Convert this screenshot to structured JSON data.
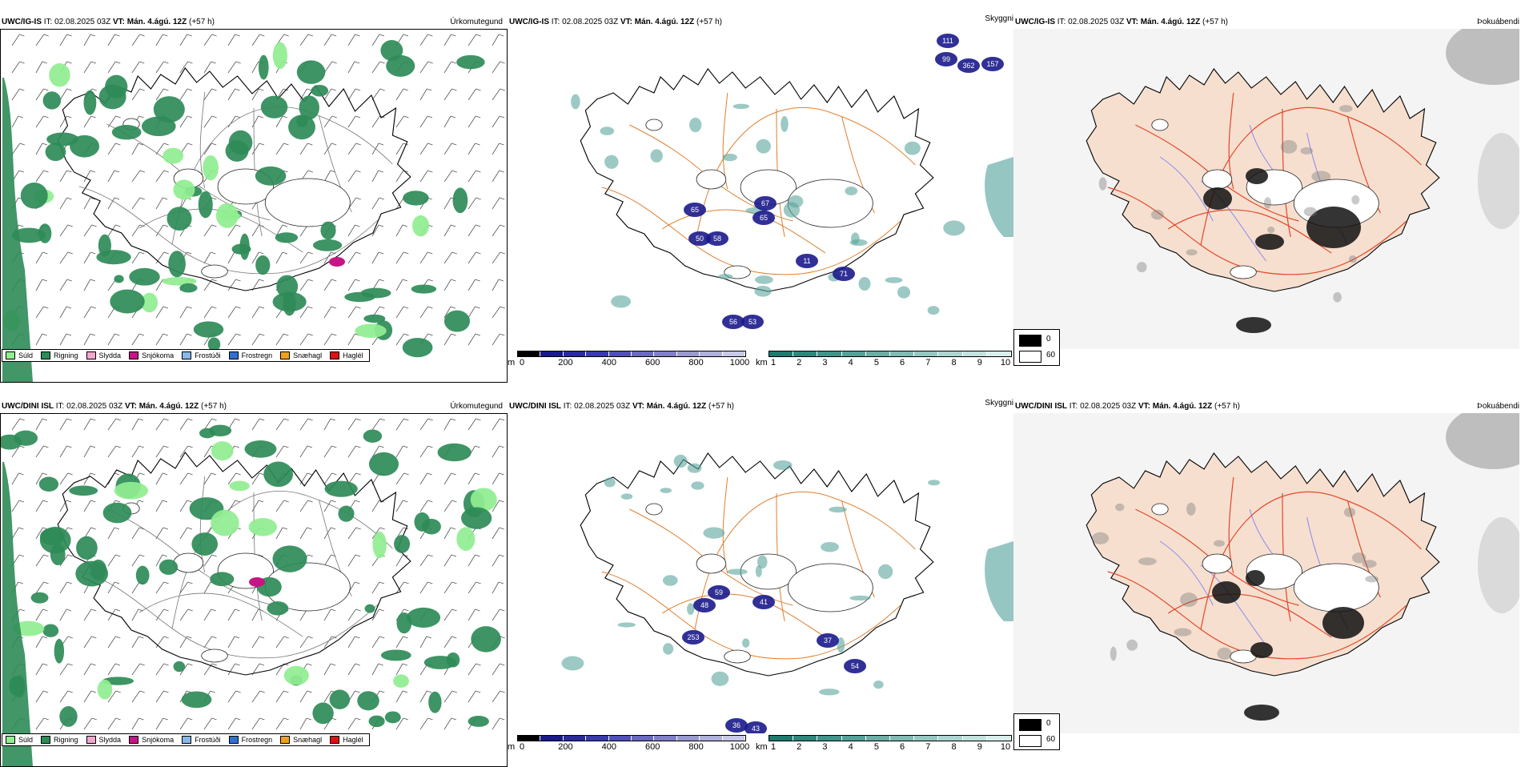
{
  "rows": [
    {
      "panels": [
        {
          "model": "UWC/IG-IS",
          "it_label": "IT:",
          "it_value": "02.08.2025 03Z",
          "vt_label": "VT:",
          "vt_value": "Mán. 4.ágú. 12Z",
          "lead": "(+57 h)",
          "variable": "Úrkomutegund"
        },
        {
          "model": "UWC/IG-IS",
          "it_label": "IT:",
          "it_value": "02.08.2025 03Z",
          "vt_label": "VT:",
          "vt_value": "Mán. 4.ágú. 12Z",
          "lead": "(+57 h)",
          "variable": "Skyggni"
        },
        {
          "model": "UWC/IG-IS",
          "it_label": "IT:",
          "it_value": "02.08.2025 03Z",
          "vt_label": "VT:",
          "vt_value": "Mán. 4.ágú. 12Z",
          "lead": "(+57 h)",
          "variable": "Þokuábendi"
        }
      ],
      "cloud_labels": [
        "111",
        "99",
        "362",
        "157",
        "67",
        "65",
        "65",
        "50",
        "58",
        "56",
        "53",
        "11",
        "71"
      ]
    },
    {
      "panels": [
        {
          "model": "UWC/DINI ISL",
          "it_label": "IT:",
          "it_value": "02.08.2025 03Z",
          "vt_label": "VT:",
          "vt_value": "Mán. 4.ágú. 12Z",
          "lead": "(+57 h)",
          "variable": "Úrkomutegund"
        },
        {
          "model": "UWC/DINI ISL",
          "it_label": "IT:",
          "it_value": "02.08.2025 03Z",
          "vt_label": "VT:",
          "vt_value": "Mán. 4.ágú. 12Z",
          "lead": "(+57 h)",
          "variable": "Skyggni"
        },
        {
          "model": "UWC/DINI ISL",
          "it_label": "IT:",
          "it_value": "02.08.2025 03Z",
          "vt_label": "VT:",
          "vt_value": "Mán. 4.ágú. 12Z",
          "lead": "(+57 h)",
          "variable": "Þokuábendi"
        }
      ],
      "cloud_labels": [
        "59",
        "48",
        "41",
        "37",
        "54",
        "36",
        "43",
        "253"
      ]
    }
  ],
  "precip_legend": [
    {
      "label": "Súld",
      "color": "#90ee90"
    },
    {
      "label": "Rigning",
      "color": "#2e8b57"
    },
    {
      "label": "Slydda",
      "color": "#f4a6d0"
    },
    {
      "label": "Snjókoma",
      "color": "#c71585"
    },
    {
      "label": "Frostúði",
      "color": "#87b8e8"
    },
    {
      "label": "Frostregn",
      "color": "#2f6fd0"
    },
    {
      "label": "Snæhagl",
      "color": "#f0a020"
    },
    {
      "label": "Haglél",
      "color": "#e01010"
    }
  ],
  "ceiling_bar": {
    "unit": "m",
    "ticks": [
      "0",
      "200",
      "400",
      "600",
      "800",
      "1000"
    ],
    "colors": [
      "#000000",
      "#1a1a8c",
      "#2a2aa0",
      "#3a3ab0",
      "#5050b8",
      "#6a6ac0",
      "#8080c8",
      "#9a9ad0",
      "#b0b0dc",
      "#c8c8e8"
    ]
  },
  "visibility_bar": {
    "unit": "km",
    "ticks": [
      "1",
      "2",
      "3",
      "4",
      "5",
      "6",
      "7",
      "8",
      "9",
      "10"
    ],
    "colors": [
      "#1f7a6e",
      "#2f877c",
      "#40948a",
      "#55a198",
      "#6aaea6",
      "#80bbb4",
      "#96c8c2",
      "#acd5d0",
      "#c2e2de",
      "#d8eeec"
    ]
  },
  "fog_legend": [
    {
      "label": "0",
      "color": "#000000"
    },
    {
      "label": "60",
      "color": "#ffffff"
    }
  ]
}
